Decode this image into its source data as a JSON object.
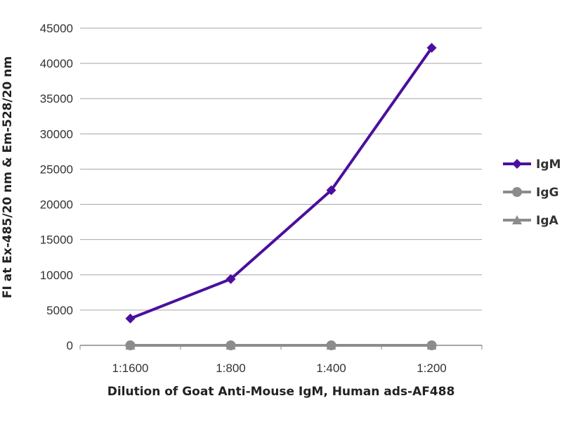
{
  "chart_data": {
    "type": "line",
    "title": "",
    "xlabel": "Dilution of Goat Anti-Mouse IgM, Human ads-AF488",
    "ylabel": "FI at Ex-485/20 nm & Em-528/20 nm",
    "categories": [
      "1:1600",
      "1:800",
      "1:400",
      "1:200"
    ],
    "ylim": [
      0,
      45000
    ],
    "yticks": [
      0,
      5000,
      10000,
      15000,
      20000,
      25000,
      30000,
      35000,
      40000,
      45000
    ],
    "grid": true,
    "legend_position": "right",
    "series": [
      {
        "name": "IgM",
        "values": [
          3800,
          9400,
          22000,
          42200
        ],
        "color": "#4b0f9e",
        "marker": "diamond"
      },
      {
        "name": "IgG",
        "values": [
          0,
          0,
          0,
          0
        ],
        "color": "#8c8c8c",
        "marker": "circle"
      },
      {
        "name": "IgA",
        "values": [
          0,
          0,
          0,
          0
        ],
        "color": "#8c8c8c",
        "marker": "triangle"
      }
    ]
  }
}
